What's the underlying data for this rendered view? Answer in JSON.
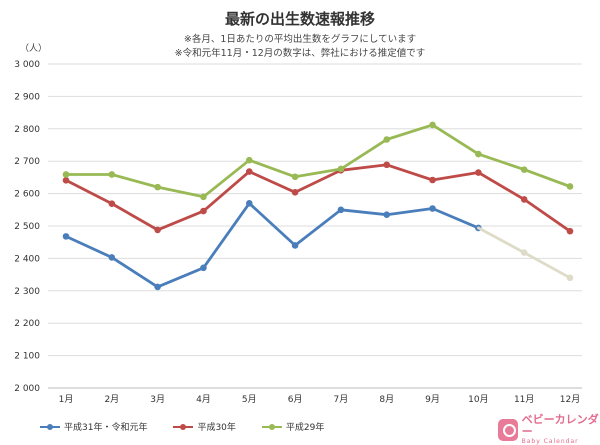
{
  "header": {
    "title": "最新の出生数速報推移",
    "note_1": "※各月、1日あたりの平均出生数をグラフにしています",
    "note_2": "※令和元年11月・12月の数字は、弊社における推定値です",
    "unit": "（人）"
  },
  "brand": {
    "name": "ベビーカレンダー",
    "sub": "Baby Calendar"
  },
  "chart_data": {
    "type": "line",
    "categories": [
      "1月",
      "2月",
      "3月",
      "4月",
      "5月",
      "6月",
      "7月",
      "8月",
      "9月",
      "10月",
      "11月",
      "12月"
    ],
    "ylim": [
      2000,
      3000
    ],
    "yticks": [
      2000,
      2100,
      2200,
      2300,
      2400,
      2500,
      2600,
      2700,
      2800,
      2900,
      3000
    ],
    "ytick_labels": [
      "2 000",
      "2 100",
      "2 200",
      "2 300",
      "2 400",
      "2 500",
      "2 600",
      "2 700",
      "2 800",
      "2 900",
      "3 000"
    ],
    "grid": "horizontal",
    "legend_position": "bottom-left",
    "series": [
      {
        "name": "平成31年・令和元年",
        "color": "#4a7ebb",
        "values": [
          2468,
          2403,
          2312,
          2371,
          2570,
          2440,
          2550,
          2535,
          2554,
          2494,
          null,
          null
        ]
      },
      {
        "name": "",
        "color": "#dedcc8",
        "estimated": true,
        "values": [
          null,
          null,
          null,
          null,
          null,
          null,
          null,
          null,
          null,
          2494,
          2418,
          2340
        ]
      },
      {
        "name": "平成30年",
        "color": "#be4b48",
        "values": [
          2641,
          2569,
          2488,
          2546,
          2668,
          2604,
          2672,
          2689,
          2642,
          2665,
          2582,
          2484
        ]
      },
      {
        "name": "平成29年",
        "color": "#98b954",
        "values": [
          2659,
          2659,
          2620,
          2590,
          2703,
          2652,
          2676,
          2767,
          2812,
          2722,
          2674,
          2622
        ]
      }
    ]
  }
}
